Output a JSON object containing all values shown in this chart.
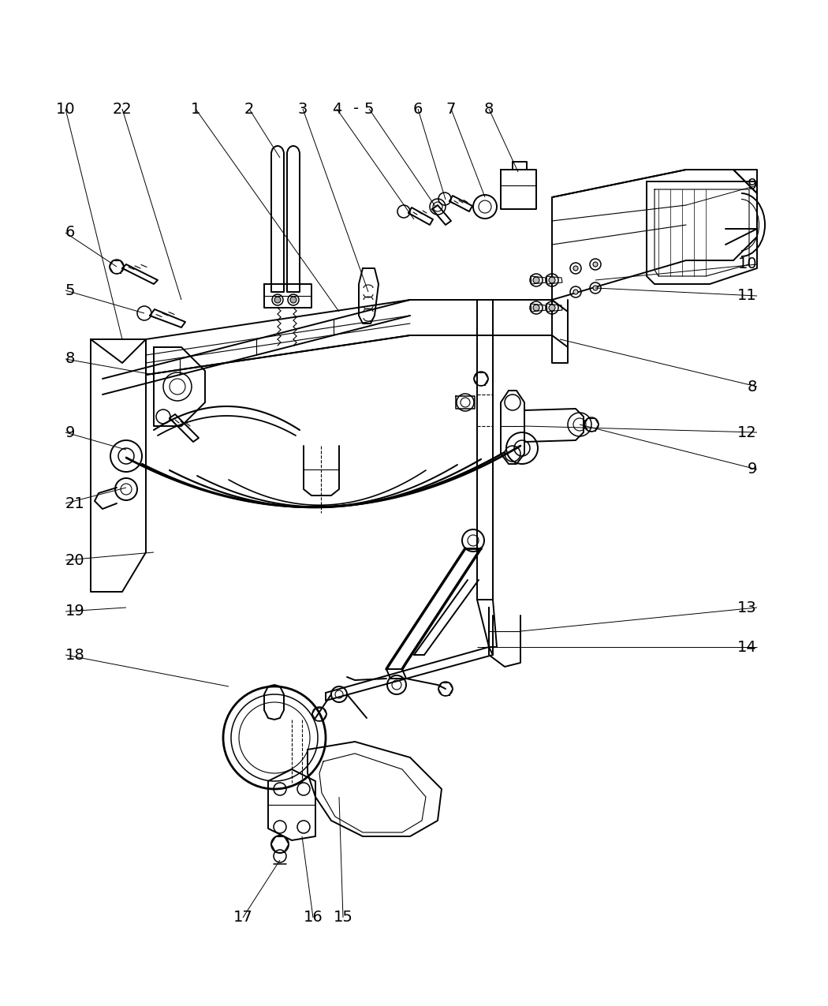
{
  "bg_color": "#ffffff",
  "line_color": "#000000",
  "fig_width": 10.5,
  "fig_height": 12.75,
  "top_labels": [
    [
      "10",
      83,
      138
    ],
    [
      "22",
      155,
      138
    ],
    [
      "1",
      248,
      138
    ],
    [
      "2",
      316,
      138
    ],
    [
      "3",
      384,
      138
    ],
    [
      "4",
      427,
      138
    ],
    [
      "-",
      452,
      138
    ],
    [
      "5",
      468,
      138
    ],
    [
      "6",
      530,
      138
    ],
    [
      "7",
      572,
      138
    ],
    [
      "8",
      620,
      138
    ]
  ],
  "right_labels": [
    [
      "9",
      960,
      235
    ],
    [
      "10",
      960,
      335
    ],
    [
      "11",
      960,
      375
    ],
    [
      "8",
      960,
      490
    ],
    [
      "12",
      960,
      548
    ],
    [
      "9",
      960,
      595
    ]
  ],
  "right_labels2": [
    [
      "13",
      960,
      770
    ],
    [
      "14",
      960,
      820
    ]
  ],
  "left_labels": [
    [
      "6",
      83,
      295
    ],
    [
      "5",
      83,
      368
    ],
    [
      "8",
      83,
      455
    ],
    [
      "9",
      83,
      548
    ],
    [
      "21",
      83,
      638
    ],
    [
      "20",
      83,
      710
    ],
    [
      "19",
      83,
      775
    ],
    [
      "18",
      83,
      830
    ]
  ],
  "bottom_labels": [
    [
      "17",
      308,
      1163
    ],
    [
      "16",
      397,
      1163
    ],
    [
      "15",
      435,
      1163
    ]
  ]
}
